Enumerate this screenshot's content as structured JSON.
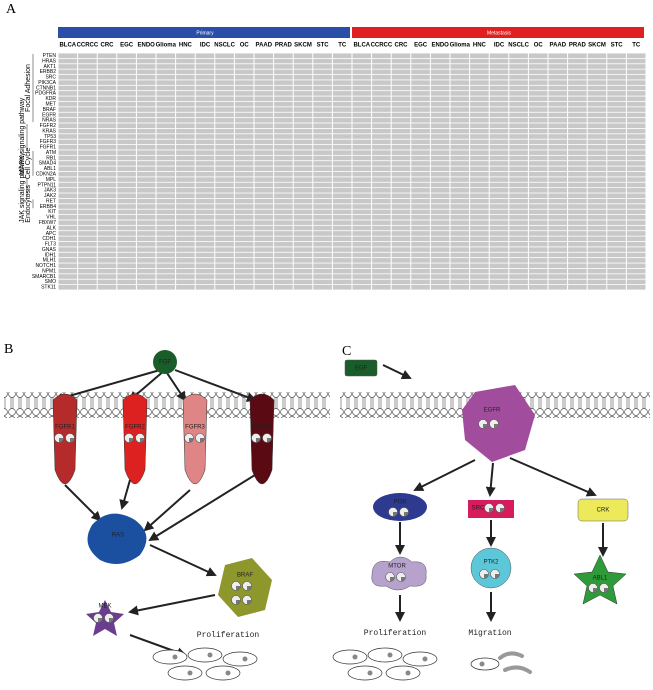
{
  "panel_a": {
    "label": "A",
    "groups": [
      "Primary",
      "Metastasis"
    ],
    "cancer_types": [
      "BLCA",
      "CCRCC",
      "CRC",
      "EGC",
      "ENDO",
      "Glioma",
      "HNC",
      "IDC",
      "NSCLC",
      "OC",
      "PAAD",
      "PRAD",
      "SKCM",
      "STC",
      "TC"
    ],
    "genes": [
      "PTEN",
      "HRAS",
      "AKT1",
      "ERBB2",
      "SRC",
      "PIK3CA",
      "CTNNB1",
      "PDGFRA",
      "KDR",
      "MET",
      "BRAF",
      "EGFR",
      "NRAS",
      "FGFR2",
      "KRAS",
      "TP53",
      "FGFR3",
      "FGFR1",
      "ATM",
      "RB1",
      "SMAD4",
      "ABL1",
      "CDKN2A",
      "MPL",
      "PTPN11",
      "JAK3",
      "JAK2",
      "RET",
      "ERBB4",
      "KIT",
      "VHL",
      "FBXW7",
      "ALK",
      "APC",
      "CDH1",
      "FLT3",
      "GNAS",
      "IDH1",
      "MLH1",
      "NOTCH1",
      "NPM1",
      "SMARCB1",
      "SMO",
      "STK11"
    ],
    "pathways": [
      "Focal Adhesion",
      "MAPK signaling pathway",
      "Cell Cycle",
      "JAK signaling pathway",
      "Endocytosis"
    ]
  },
  "panel_b": {
    "label": "B",
    "ligand": "FGF",
    "receptors": [
      "FGFR1",
      "FGFR2",
      "FGFR3",
      "FGFR4"
    ],
    "ras": "RAS",
    "braf": "BRAF",
    "mek": "MEK",
    "outcome": "Proliferation"
  },
  "panel_c": {
    "label": "C",
    "ligand": "EGF",
    "receptor": "EGFR",
    "nodes": [
      "PI3K",
      "SRC",
      "CRK",
      "MTOR",
      "PTK2",
      "ABL1"
    ],
    "outcomes": [
      "Proliferation",
      "Migration"
    ]
  }
}
